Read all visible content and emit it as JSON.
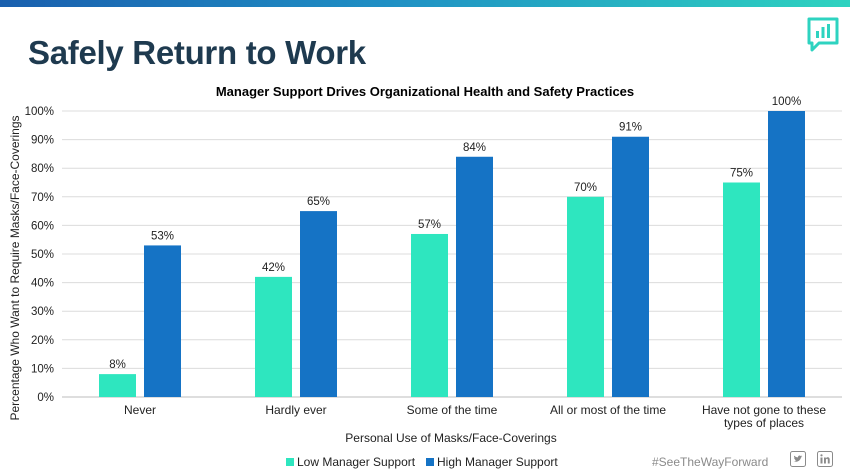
{
  "page": {
    "title": "Safely Return to Work",
    "hashtag": "#SeeTheWayForward",
    "colors": {
      "accent_dark": "#1e3a4f",
      "accent_teal": "#2ed3c0"
    },
    "icons": [
      "chart-bubble-logo-icon",
      "twitter-icon",
      "linkedin-icon"
    ]
  },
  "chart_data": {
    "type": "bar",
    "title": "Manager Support Drives Organizational Health and Safety Practices",
    "xlabel": "Personal Use of Masks/Face-Coverings",
    "ylabel": "Percentage Who Want to Require Masks/Face-Coverings",
    "categories": [
      [
        "Never"
      ],
      [
        "Hardly ever"
      ],
      [
        "Some of the time"
      ],
      [
        "All or most of the time"
      ],
      [
        "Have not gone to these",
        "types of places"
      ]
    ],
    "series": [
      {
        "name": "Low Manager Support",
        "color": "#2ee6bf",
        "values": [
          8,
          42,
          57,
          70,
          75
        ],
        "labels": [
          "8%",
          "42%",
          "57%",
          "70%",
          "75%"
        ]
      },
      {
        "name": "High Manager Support",
        "color": "#1573c5",
        "values": [
          53,
          65,
          84,
          91,
          100
        ],
        "labels": [
          "53%",
          "65%",
          "84%",
          "91%",
          "100%"
        ]
      }
    ],
    "ylim": [
      0,
      100
    ],
    "yticks": [
      0,
      10,
      20,
      30,
      40,
      50,
      60,
      70,
      80,
      90,
      100
    ],
    "ytick_labels": [
      "0%",
      "10%",
      "20%",
      "30%",
      "40%",
      "50%",
      "60%",
      "70%",
      "80%",
      "90%",
      "100%"
    ],
    "grid": true,
    "legend": "bottom"
  }
}
